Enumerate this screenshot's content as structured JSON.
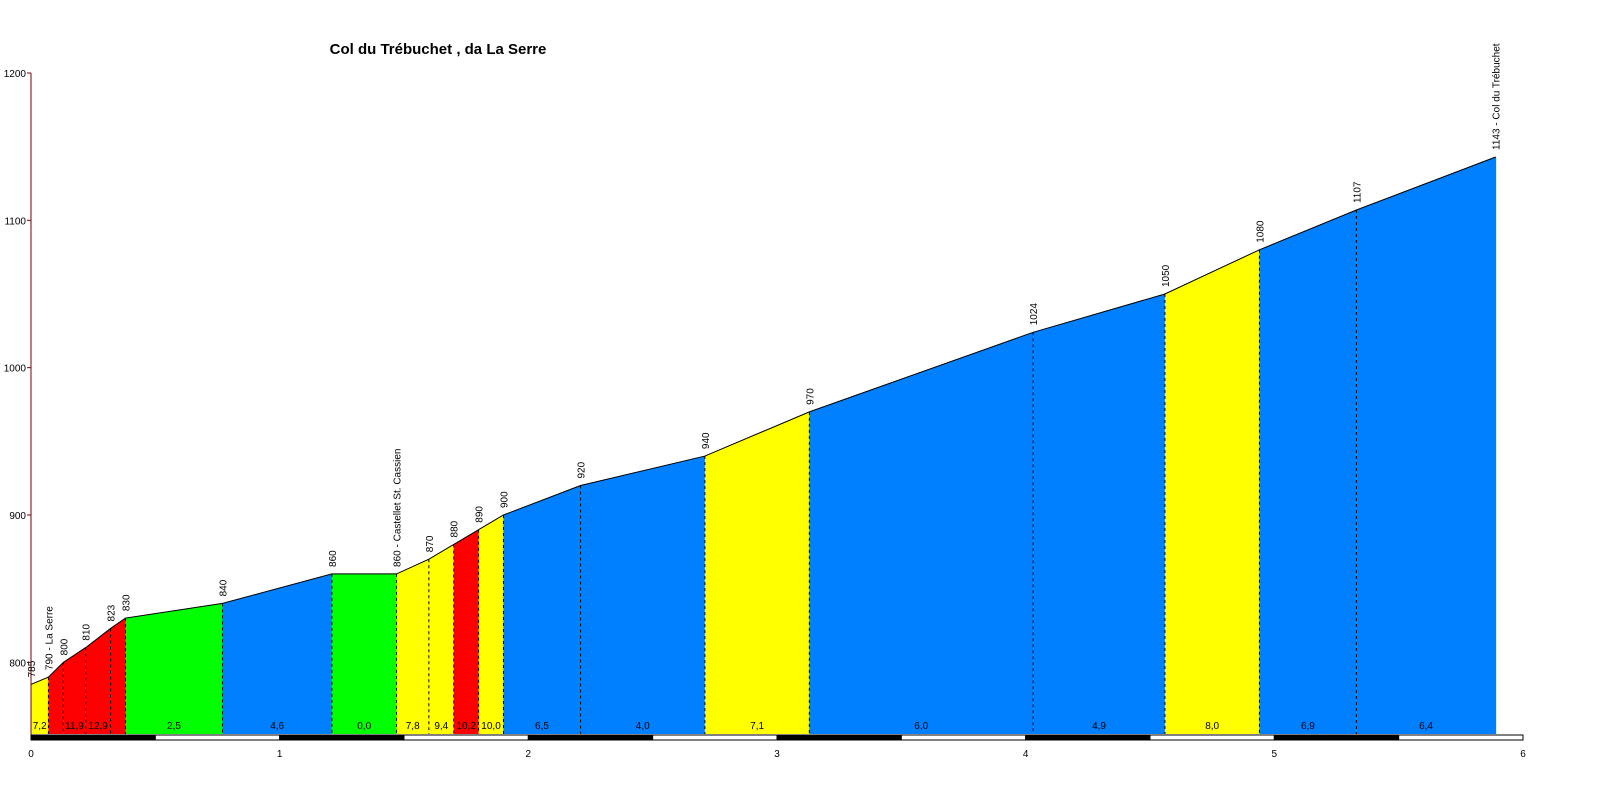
{
  "chart_data": {
    "type": "area",
    "title": "Col du Trébuchet , da La Serre",
    "xlabel": "",
    "ylabel": "",
    "xlim": [
      0,
      6
    ],
    "ylim": [
      750,
      1200
    ],
    "x_ticks": [
      "0",
      "1",
      "2",
      "3",
      "4",
      "5",
      "6"
    ],
    "y_ticks": [
      "800",
      "900",
      "1000",
      "1100",
      "1200"
    ],
    "grid": false,
    "legend": "none",
    "colors": {
      "yellow": "#ffff00",
      "red": "#ff0000",
      "green": "#00ff00",
      "blue": "#0080ff",
      "axis": "#7a0000"
    },
    "points": [
      {
        "x": 0.0,
        "y": 785,
        "label": "785"
      },
      {
        "x": 0.07,
        "y": 790,
        "label": "790 - La Serre"
      },
      {
        "x": 0.13,
        "y": 800,
        "label": "800"
      },
      {
        "x": 0.22,
        "y": 810,
        "label": "810"
      },
      {
        "x": 0.32,
        "y": 823,
        "label": "823"
      },
      {
        "x": 0.38,
        "y": 830,
        "label": "830"
      },
      {
        "x": 0.77,
        "y": 840,
        "label": "840"
      },
      {
        "x": 1.21,
        "y": 860,
        "label": "860"
      },
      {
        "x": 1.47,
        "y": 860,
        "label": "860 - Castellet St. Cassien"
      },
      {
        "x": 1.6,
        "y": 870,
        "label": "870"
      },
      {
        "x": 1.7,
        "y": 880,
        "label": "880"
      },
      {
        "x": 1.8,
        "y": 890,
        "label": "890"
      },
      {
        "x": 1.9,
        "y": 900,
        "label": "900"
      },
      {
        "x": 2.21,
        "y": 920,
        "label": "920"
      },
      {
        "x": 2.71,
        "y": 940,
        "label": "940"
      },
      {
        "x": 3.13,
        "y": 970,
        "label": "970"
      },
      {
        "x": 4.03,
        "y": 1024,
        "label": "1024"
      },
      {
        "x": 4.56,
        "y": 1050,
        "label": "1050"
      },
      {
        "x": 4.94,
        "y": 1080,
        "label": "1080"
      },
      {
        "x": 5.33,
        "y": 1107,
        "label": "1107"
      },
      {
        "x": 5.89,
        "y": 1143,
        "label": "1143 - Col du Trébuchet"
      }
    ],
    "segments": [
      {
        "gradient": "7,2",
        "color": "yellow"
      },
      {
        "gradient": "",
        "color": "red"
      },
      {
        "gradient": "11,9",
        "color": "red"
      },
      {
        "gradient": "12,9",
        "color": "red"
      },
      {
        "gradient": "",
        "color": "red"
      },
      {
        "gradient": "2,5",
        "color": "green"
      },
      {
        "gradient": "4,6",
        "color": "blue"
      },
      {
        "gradient": "0,0",
        "color": "green"
      },
      {
        "gradient": "7,8",
        "color": "yellow"
      },
      {
        "gradient": "9,4",
        "color": "yellow"
      },
      {
        "gradient": "10,2",
        "color": "red"
      },
      {
        "gradient": "10,0",
        "color": "yellow"
      },
      {
        "gradient": "6,5",
        "color": "blue"
      },
      {
        "gradient": "4,0",
        "color": "blue"
      },
      {
        "gradient": "7,1",
        "color": "yellow"
      },
      {
        "gradient": "6,0",
        "color": "blue"
      },
      {
        "gradient": "4,9",
        "color": "blue"
      },
      {
        "gradient": "8,0",
        "color": "yellow"
      },
      {
        "gradient": "6,9",
        "color": "blue"
      },
      {
        "gradient": "6,4",
        "color": "blue"
      }
    ]
  }
}
